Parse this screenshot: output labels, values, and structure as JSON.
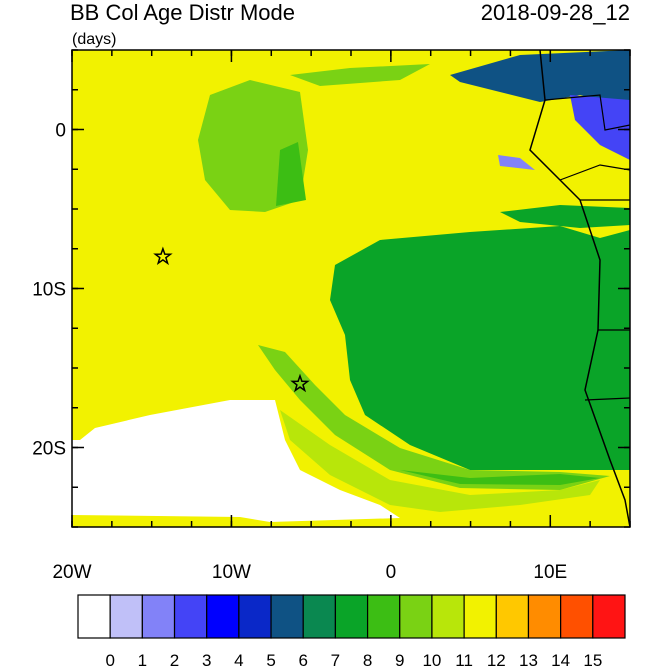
{
  "title": "BB Col Age Distr Mode",
  "units": "(days)",
  "time": "2018-09-28_12",
  "map": {
    "lon_range": [
      -20,
      15
    ],
    "lat_range": [
      -25,
      5
    ],
    "x_ticks": [
      {
        "value": -20,
        "label": "20W"
      },
      {
        "value": -10,
        "label": "10W"
      },
      0,
      {
        "value": 10,
        "label": "10E"
      }
    ],
    "y_ticks": [
      0,
      {
        "value": -10,
        "label": "10S"
      },
      {
        "value": -20,
        "label": "20S"
      }
    ],
    "markers": [
      {
        "lon": -14.3,
        "lat": -8
      },
      {
        "lon": -5.7,
        "lat": -16
      }
    ]
  },
  "colorbar": {
    "colors": [
      "#ffffff",
      "#c0c0f8",
      "#8282f8",
      "#4444f6",
      "#0000ff",
      "#0a28c8",
      "#0f5284",
      "#0a8850",
      "#0aa428",
      "#3cbe14",
      "#7ad214",
      "#b8e60a",
      "#f2f200",
      "#ffc800",
      "#ff8c00",
      "#ff5000",
      "#ff1414"
    ],
    "labels": [
      0,
      1,
      2,
      3,
      4,
      5,
      6,
      7,
      8,
      9,
      10,
      11,
      12,
      13,
      14,
      15
    ]
  }
}
